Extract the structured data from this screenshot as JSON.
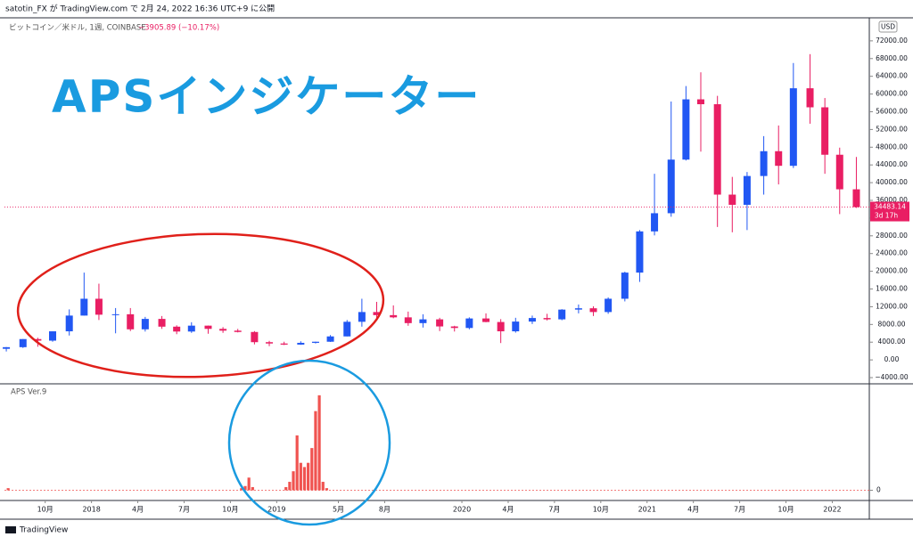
{
  "publisher": "satotin_FX が TradingView.com で 2月 24, 2022 16:36 UTC+9 に公開",
  "footer": "TradingView",
  "chart_data": [
    {
      "type": "candlestick",
      "title": "ビットコイン／米ドル, 1週, COINBASE",
      "change": "−3905.89 (−10.17%)",
      "annotation": "APSインジケーター",
      "currency": "USD",
      "last_price": 34483.14,
      "countdown": "3d 17h",
      "up_color": "#2157f3",
      "down_color": "#e91e63",
      "x": [
        2017.54,
        2017.63,
        2017.71,
        2017.79,
        2017.88,
        2017.96,
        2018.04,
        2018.13,
        2018.21,
        2018.29,
        2018.38,
        2018.46,
        2018.54,
        2018.63,
        2018.71,
        2018.79,
        2018.88,
        2018.96,
        2019.04,
        2019.13,
        2019.21,
        2019.29,
        2019.38,
        2019.46,
        2019.54,
        2019.63,
        2019.71,
        2019.79,
        2019.88,
        2019.96,
        2020.04,
        2020.13,
        2020.21,
        2020.29,
        2020.38,
        2020.46,
        2020.54,
        2020.63,
        2020.71,
        2020.79,
        2020.88,
        2020.96,
        2021.04,
        2021.13,
        2021.21,
        2021.29,
        2021.38,
        2021.46,
        2021.54,
        2021.63,
        2021.71,
        2021.79,
        2021.88,
        2021.96,
        2022.04,
        2022.13
      ],
      "ohlc": [
        [
          2500,
          2900,
          1900,
          2870
        ],
        [
          2870,
          4700,
          2700,
          4700
        ],
        [
          4700,
          5000,
          2970,
          4340
        ],
        [
          4340,
          6450,
          4100,
          6450
        ],
        [
          6450,
          11400,
          5500,
          10000
        ],
        [
          10000,
          19700,
          10000,
          13800
        ],
        [
          13800,
          17200,
          9000,
          10200
        ],
        [
          10200,
          11700,
          6000,
          10300
        ],
        [
          10300,
          11700,
          6500,
          6900
        ],
        [
          6900,
          9700,
          6400,
          9250
        ],
        [
          9250,
          9900,
          7000,
          7500
        ],
        [
          7500,
          7800,
          5800,
          6400
        ],
        [
          6400,
          8500,
          6100,
          7730
        ],
        [
          7730,
          7750,
          5900,
          7000
        ],
        [
          7000,
          7400,
          6100,
          6600
        ],
        [
          6600,
          7000,
          6200,
          6300
        ],
        [
          6300,
          6500,
          3500,
          4000
        ],
        [
          4000,
          4300,
          3100,
          3700
        ],
        [
          3700,
          4100,
          3350,
          3450
        ],
        [
          3450,
          4200,
          3400,
          3850
        ],
        [
          3850,
          4100,
          3700,
          4100
        ],
        [
          4100,
          5600,
          4050,
          5300
        ],
        [
          5300,
          9000,
          5300,
          8600
        ],
        [
          8600,
          13800,
          7500,
          10800
        ],
        [
          10800,
          13100,
          9000,
          10100
        ],
        [
          10100,
          12300,
          9400,
          9600
        ],
        [
          9600,
          10900,
          7700,
          8300
        ],
        [
          8300,
          10300,
          7300,
          9150
        ],
        [
          9150,
          9500,
          6500,
          7550
        ],
        [
          7550,
          7700,
          6400,
          7200
        ],
        [
          7200,
          9600,
          6900,
          9350
        ],
        [
          9350,
          10500,
          8500,
          8550
        ],
        [
          8550,
          9200,
          3800,
          6450
        ],
        [
          6450,
          9500,
          6150,
          8650
        ],
        [
          8650,
          10000,
          8100,
          9450
        ],
        [
          9450,
          10400,
          8900,
          9150
        ],
        [
          9150,
          11450,
          8950,
          11350
        ],
        [
          11350,
          12500,
          10500,
          11650
        ],
        [
          11650,
          12100,
          9900,
          10800
        ],
        [
          10800,
          14100,
          10400,
          13800
        ],
        [
          13800,
          19900,
          13200,
          19700
        ],
        [
          19700,
          29300,
          17600,
          29000
        ],
        [
          29000,
          42000,
          28100,
          33100
        ],
        [
          33100,
          58300,
          32300,
          45200
        ],
        [
          45200,
          61800,
          45000,
          58800
        ],
        [
          58800,
          64900,
          47000,
          57700
        ],
        [
          57700,
          59600,
          30000,
          37300
        ],
        [
          37300,
          41300,
          28800,
          35000
        ],
        [
          35000,
          42400,
          29300,
          41500
        ],
        [
          41500,
          50500,
          37300,
          47100
        ],
        [
          47100,
          52900,
          39600,
          43800
        ],
        [
          43800,
          67000,
          43300,
          61300
        ],
        [
          61300,
          69000,
          53300,
          57000
        ],
        [
          57000,
          59100,
          42000,
          46300
        ],
        [
          46300,
          47900,
          32900,
          38500
        ],
        [
          38500,
          45800,
          34300,
          34483.14
        ]
      ],
      "xlim": [
        2017.53,
        2022.2
      ],
      "xticks": [
        {
          "value": 2017.75,
          "label": "10月"
        },
        {
          "value": 2018,
          "label": "2018"
        },
        {
          "value": 2018.25,
          "label": "4月"
        },
        {
          "value": 2018.5,
          "label": "7月"
        },
        {
          "value": 2018.75,
          "label": "10月"
        },
        {
          "value": 2019,
          "label": "2019"
        },
        {
          "value": 2019.333,
          "label": "5月"
        },
        {
          "value": 2019.583,
          "label": "8月"
        },
        {
          "value": 2020,
          "label": "2020"
        },
        {
          "value": 2020.25,
          "label": "4月"
        },
        {
          "value": 2020.5,
          "label": "7月"
        },
        {
          "value": 2020.75,
          "label": "10月"
        },
        {
          "value": 2021,
          "label": "2021"
        },
        {
          "value": 2021.25,
          "label": "4月"
        },
        {
          "value": 2021.5,
          "label": "7月"
        },
        {
          "value": 2021.75,
          "label": "10月"
        },
        {
          "value": 2022,
          "label": "2022"
        }
      ],
      "ylim": [
        -5200,
        77200
      ],
      "yticks": [
        {
          "value": -4000,
          "label": "−4000.00"
        },
        {
          "value": 0,
          "label": "0.00"
        },
        {
          "value": 4000,
          "label": "4000.00"
        },
        {
          "value": 8000,
          "label": "8000.00"
        },
        {
          "value": 12000,
          "label": "12000.00"
        },
        {
          "value": 16000,
          "label": "16000.00"
        },
        {
          "value": 20000,
          "label": "20000.00"
        },
        {
          "value": 24000,
          "label": "24000.00"
        },
        {
          "value": 28000,
          "label": "28000.00"
        },
        {
          "value": 32000,
          "label": "32000.00"
        },
        {
          "value": 36000,
          "label": "36000.00"
        },
        {
          "value": 40000,
          "label": "40000.00"
        },
        {
          "value": 44000,
          "label": "44000.00"
        },
        {
          "value": 48000,
          "label": "48000.00"
        },
        {
          "value": 52000,
          "label": "52000.00"
        },
        {
          "value": 56000,
          "label": "56000.00"
        },
        {
          "value": 60000,
          "label": "60000.00"
        },
        {
          "value": 64000,
          "label": "64000.00"
        },
        {
          "value": 68000,
          "label": "68000.00"
        },
        {
          "value": 72000,
          "label": "72000.00"
        }
      ]
    },
    {
      "type": "bar",
      "title": "APS Ver.9",
      "color": "#f05350",
      "x": [
        2017.55,
        2018.81,
        2018.83,
        2018.85,
        2018.87,
        2019.05,
        2019.07,
        2019.09,
        2019.11,
        2019.13,
        2019.15,
        2019.17,
        2019.19,
        2019.21,
        2019.23,
        2019.25,
        2019.27
      ],
      "values": [
        2,
        2,
        4,
        12,
        3,
        3,
        8,
        18,
        52,
        26,
        22,
        26,
        40,
        75,
        90,
        8,
        2
      ],
      "ylim": [
        -8,
        100
      ],
      "yticks": [
        0
      ]
    }
  ]
}
